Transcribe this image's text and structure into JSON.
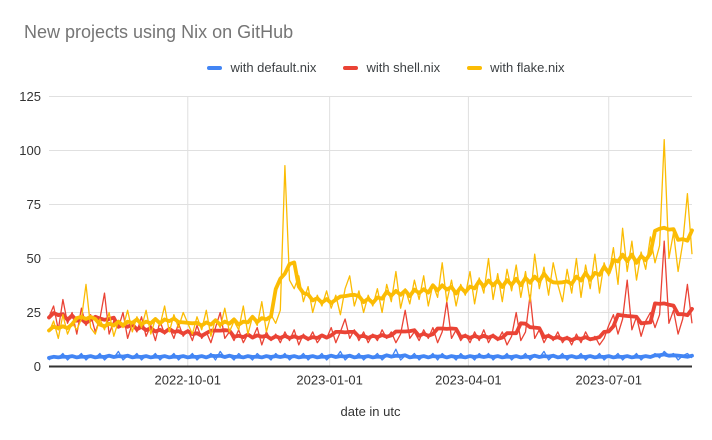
{
  "page": {
    "title": "New projects using Nix on GitHub"
  },
  "axis_titles": {
    "x": "date in utc"
  },
  "colors": {
    "title_text": "#757575",
    "tick_text": "#333333",
    "legend_text": "#3c4043",
    "grid": "#e0e0e0",
    "axis_line": "#333333",
    "background": "#ffffff",
    "series_blue": "#4285F4",
    "series_red": "#EA4335",
    "series_yellow": "#FBBC04"
  },
  "chart_data": {
    "type": "line",
    "title": "New projects using Nix on GitHub",
    "xlabel": "date in utc",
    "ylabel": "",
    "ylim": [
      0,
      125
    ],
    "yticks": [
      0,
      25,
      50,
      75,
      100,
      125
    ],
    "grid": "on",
    "legend_position": "top-center",
    "x_ticks": [
      {
        "day": 90,
        "label": "2022-10-01"
      },
      {
        "day": 182,
        "label": "2023-01-01"
      },
      {
        "day": 272,
        "label": "2023-04-01"
      },
      {
        "day": 363,
        "label": "2023-07-01"
      }
    ],
    "x_axis_note": "daily counts from early July 2022 to late August 2023; samples below are at 3-day spacing",
    "sample_interval_days": 3,
    "line_style": "each series drawn twice: thin noisy daily line plus thick rolling-average line",
    "series": [
      {
        "name": "with default.nix",
        "color": "#4285F4",
        "values": [
          3,
          5,
          4,
          6,
          3,
          5,
          4,
          6,
          3,
          5,
          4,
          6,
          3,
          5,
          4,
          7,
          3,
          5,
          4,
          6,
          3,
          5,
          4,
          6,
          3,
          5,
          4,
          6,
          3,
          5,
          4,
          6,
          3,
          5,
          4,
          6,
          3,
          7,
          4,
          5,
          3,
          6,
          4,
          5,
          3,
          6,
          4,
          5,
          3,
          6,
          4,
          6,
          3,
          5,
          4,
          6,
          3,
          5,
          4,
          6,
          3,
          5,
          4,
          7,
          3,
          5,
          4,
          6,
          3,
          5,
          4,
          6,
          3,
          5,
          4,
          8,
          3,
          5,
          4,
          6,
          3,
          5,
          4,
          6,
          3,
          6,
          4,
          5,
          3,
          6,
          4,
          5,
          3,
          6,
          4,
          6,
          3,
          5,
          4,
          6,
          3,
          5,
          4,
          6,
          3,
          5,
          4,
          7,
          3,
          5,
          4,
          6,
          3,
          5,
          4,
          6,
          3,
          5,
          4,
          6,
          3,
          5,
          4,
          6,
          3,
          5,
          4,
          6,
          3,
          5,
          4,
          6,
          4,
          7,
          5,
          6,
          3,
          5,
          6,
          4
        ]
      },
      {
        "name": "with shell.nix",
        "color": "#EA4335",
        "values": [
          23,
          28,
          17,
          31,
          20,
          25,
          15,
          27,
          19,
          24,
          16,
          22,
          34,
          15,
          21,
          18,
          25,
          13,
          20,
          16,
          23,
          14,
          19,
          12,
          21,
          15,
          18,
          13,
          20,
          14,
          17,
          12,
          19,
          13,
          16,
          11,
          18,
          25,
          13,
          16,
          12,
          17,
          11,
          15,
          13,
          18,
          10,
          16,
          12,
          15,
          11,
          16,
          12,
          17,
          10,
          15,
          12,
          16,
          11,
          14,
          13,
          18,
          11,
          16,
          22,
          13,
          17,
          12,
          16,
          11,
          15,
          12,
          17,
          13,
          16,
          11,
          15,
          26,
          13,
          16,
          12,
          17,
          13,
          18,
          11,
          16,
          30,
          13,
          17,
          12,
          15,
          11,
          16,
          12,
          17,
          11,
          15,
          12,
          16,
          10,
          14,
          25,
          12,
          16,
          33,
          13,
          17,
          11,
          15,
          12,
          16,
          11,
          14,
          10,
          15,
          11,
          16,
          12,
          14,
          10,
          13,
          19,
          24,
          15,
          22,
          40,
          17,
          23,
          14,
          21,
          25,
          18,
          24,
          58,
          20,
          26,
          15,
          22,
          38,
          20
        ]
      },
      {
        "name": "with flake.nix",
        "color": "#FBBC04",
        "values": [
          16,
          21,
          13,
          24,
          15,
          20,
          17,
          22,
          38,
          18,
          15,
          22,
          17,
          25,
          14,
          21,
          18,
          26,
          16,
          23,
          18,
          26,
          15,
          22,
          19,
          28,
          16,
          24,
          18,
          25,
          20,
          15,
          23,
          17,
          26,
          14,
          22,
          18,
          27,
          16,
          21,
          17,
          28,
          15,
          23,
          19,
          30,
          16,
          24,
          20,
          26,
          93,
          40,
          36,
          42,
          30,
          37,
          25,
          33,
          28,
          35,
          27,
          33,
          24,
          36,
          42,
          28,
          35,
          25,
          33,
          28,
          36,
          25,
          38,
          30,
          44,
          27,
          36,
          29,
          40,
          31,
          42,
          28,
          38,
          32,
          48,
          30,
          40,
          28,
          38,
          33,
          44,
          29,
          41,
          34,
          50,
          31,
          43,
          30,
          45,
          35,
          47,
          32,
          44,
          30,
          52,
          36,
          46,
          33,
          48,
          38,
          30,
          45,
          34,
          50,
          32,
          47,
          36,
          52,
          34,
          48,
          42,
          55,
          38,
          64,
          44,
          58,
          40,
          53,
          45,
          60,
          48,
          56,
          105,
          50,
          62,
          44,
          57,
          80,
          52
        ]
      }
    ],
    "notable_points": [
      {
        "series": "with flake.nix",
        "approx_date": "2022-12-02",
        "value": 93
      },
      {
        "series": "with flake.nix",
        "approx_date": "2023-08-05",
        "value": 105
      },
      {
        "series": "with flake.nix",
        "approx_date": "2023-08-21",
        "value": 80
      },
      {
        "series": "with shell.nix",
        "approx_date": "2023-08-05",
        "value": 58
      }
    ]
  }
}
